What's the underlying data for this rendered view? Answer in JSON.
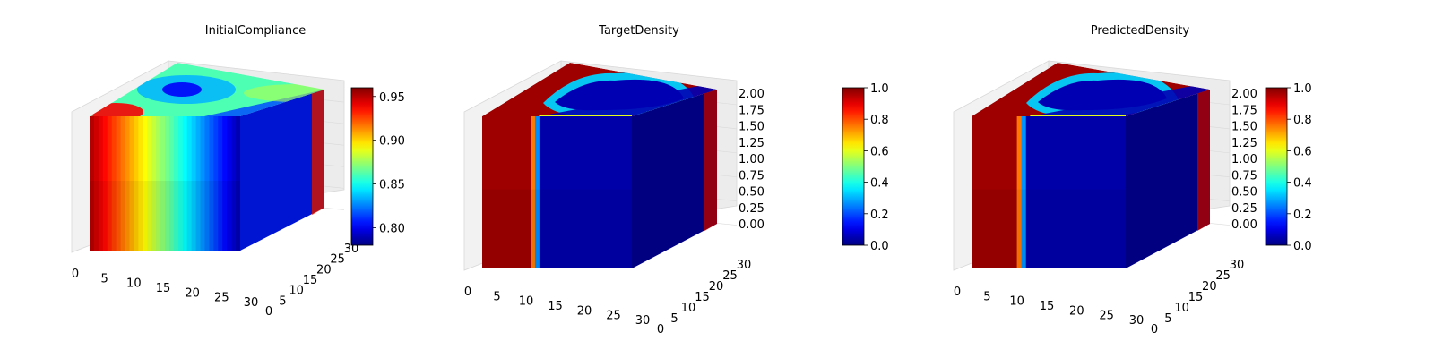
{
  "colormap": "jet",
  "chart_data": [
    {
      "type": "voxel-3d",
      "title": "InitialCompliance",
      "x_ticks": [
        "0",
        "5",
        "10",
        "15",
        "20",
        "25",
        "30"
      ],
      "y_ticks": [
        "0",
        "5",
        "10",
        "15",
        "20",
        "25",
        "30"
      ],
      "z_ticks": [],
      "colorbar": {
        "min": 0.78,
        "max": 0.96,
        "ticks": [
          "0.80",
          "0.85",
          "0.90",
          "0.95"
        ]
      },
      "front_face_value_range": [
        0.95,
        0.79
      ],
      "top_face_low_region": "upper-left",
      "grid": true
    },
    {
      "type": "voxel-3d",
      "title": "TargetDensity",
      "x_ticks": [
        "0",
        "5",
        "10",
        "15",
        "20",
        "25",
        "30"
      ],
      "y_ticks": [
        "0",
        "5",
        "10",
        "15",
        "20",
        "25",
        "30"
      ],
      "z_ticks": [
        "0.00",
        "0.25",
        "0.50",
        "0.75",
        "1.00",
        "1.25",
        "1.50",
        "1.75",
        "2.00"
      ],
      "colorbar": {
        "min": 0.0,
        "max": 1.0,
        "ticks": [
          "0.0",
          "0.2",
          "0.4",
          "0.6",
          "0.8",
          "1.0"
        ]
      },
      "front_face_solid_fraction": 0.38,
      "top_face_void_region": "upper-middle",
      "grid": true
    },
    {
      "type": "voxel-3d",
      "title": "PredictedDensity",
      "x_ticks": [
        "0",
        "5",
        "10",
        "15",
        "20",
        "25",
        "30"
      ],
      "y_ticks": [
        "0",
        "5",
        "10",
        "15",
        "20",
        "25",
        "30"
      ],
      "z_ticks": [
        "0.00",
        "0.25",
        "0.50",
        "0.75",
        "1.00",
        "1.25",
        "1.50",
        "1.75",
        "2.00"
      ],
      "colorbar": {
        "min": 0.0,
        "max": 1.0,
        "ticks": [
          "0.0",
          "0.2",
          "0.4",
          "0.6",
          "0.8",
          "1.0"
        ]
      },
      "front_face_solid_fraction": 0.35,
      "top_face_void_region": "upper-middle",
      "grid": true
    }
  ]
}
